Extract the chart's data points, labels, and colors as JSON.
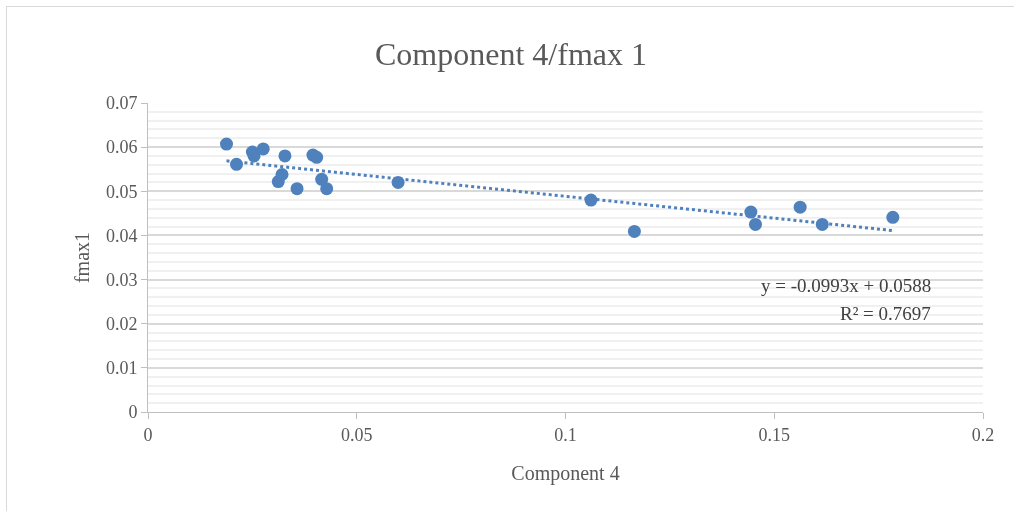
{
  "chart_data": {
    "type": "scatter",
    "title": "Component 4/fmax 1",
    "xlabel": "Component 4",
    "ylabel": "fmax1",
    "xlim": [
      0,
      0.2
    ],
    "xticks": [
      0,
      0.05,
      0.1,
      0.15,
      0.2
    ],
    "ylim": [
      0,
      0.07
    ],
    "yticks": [
      0,
      0.01,
      0.02,
      0.03,
      0.04,
      0.05,
      0.06,
      0.07
    ],
    "grid": "y",
    "series": [
      {
        "marker": "circle",
        "color": "#4f81bd",
        "x": [
          0.0188,
          0.0212,
          0.025,
          0.0254,
          0.0276,
          0.0328,
          0.0312,
          0.0321,
          0.0357,
          0.0395,
          0.0404,
          0.0416,
          0.0428,
          0.0599,
          0.1061,
          0.1165,
          0.1444,
          0.1455,
          0.1562,
          0.1615,
          0.1784
        ],
        "values": [
          0.0607,
          0.0561,
          0.0589,
          0.058,
          0.0596,
          0.058,
          0.0522,
          0.0538,
          0.0506,
          0.0582,
          0.0577,
          0.0527,
          0.0506,
          0.052,
          0.048,
          0.0409,
          0.0453,
          0.0425,
          0.0464,
          0.0425,
          0.0441
        ]
      },
      {
        "type": "line",
        "marker": "none",
        "line_style": "dotted",
        "color": "#4f81bd",
        "x": [
          0.0188,
          0.1784
        ],
        "values": [
          0.0569,
          0.0411
        ]
      }
    ],
    "annotations": [
      "y = -0.0993x + 0.0588",
      "R² = 0.7697"
    ]
  }
}
